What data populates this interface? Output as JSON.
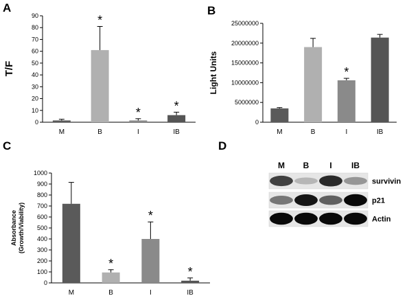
{
  "panels": {
    "a": "A",
    "b": "B",
    "c": "C",
    "d": "D"
  },
  "chart_data": [
    {
      "panel": "A",
      "type": "bar",
      "categories": [
        "M",
        "B",
        "I",
        "IB"
      ],
      "values": [
        1.5,
        61,
        1.5,
        6
      ],
      "errors": [
        1,
        20,
        1.5,
        2.5
      ],
      "significant": [
        false,
        true,
        true,
        true
      ],
      "colors": [
        "#5a5a5a",
        "#b0b0b0",
        "#8a8a8a",
        "#555555"
      ],
      "title": "",
      "xlabel": "",
      "ylabel": "T/F",
      "ylim": [
        0,
        90
      ],
      "yticks": [
        0,
        10,
        20,
        30,
        40,
        50,
        60,
        70,
        80,
        90
      ],
      "grid": false
    },
    {
      "panel": "B",
      "type": "bar",
      "categories": [
        "M",
        "B",
        "I",
        "IB"
      ],
      "values": [
        3500000,
        19000000,
        10600000,
        21400000
      ],
      "errors": [
        200000,
        2200000,
        500000,
        800000
      ],
      "significant": [
        false,
        false,
        true,
        false
      ],
      "colors": [
        "#5a5a5a",
        "#b0b0b0",
        "#8a8a8a",
        "#555555"
      ],
      "title": "",
      "xlabel": "",
      "ylabel": "Light Units",
      "ylim": [
        0,
        25000000
      ],
      "yticks": [
        0,
        5000000,
        10000000,
        15000000,
        20000000,
        25000000
      ],
      "grid": false
    },
    {
      "panel": "C",
      "type": "bar",
      "categories": [
        "M",
        "B",
        "I",
        "IB"
      ],
      "values": [
        720,
        95,
        400,
        20
      ],
      "errors": [
        195,
        25,
        155,
        25
      ],
      "significant": [
        false,
        true,
        true,
        true
      ],
      "colors": [
        "#5a5a5a",
        "#b0b0b0",
        "#8a8a8a",
        "#555555"
      ],
      "title": "",
      "xlabel": "",
      "ylabel": "Absorbance\n(Growth/Viability)",
      "ylim": [
        0,
        1000
      ],
      "yticks": [
        0,
        100,
        200,
        300,
        400,
        500,
        600,
        700,
        800,
        900,
        1000
      ],
      "grid": false
    }
  ],
  "blot": {
    "lanes": [
      "M",
      "B",
      "I",
      "IB"
    ],
    "rows": [
      {
        "label": "survivin",
        "intensity": [
          0.75,
          0.2,
          0.85,
          0.35
        ]
      },
      {
        "label": "p21",
        "intensity": [
          0.5,
          0.95,
          0.6,
          1.0
        ]
      },
      {
        "label": "Actin",
        "intensity": [
          1.0,
          1.0,
          1.0,
          1.0
        ]
      }
    ]
  },
  "significance_marker": "*"
}
